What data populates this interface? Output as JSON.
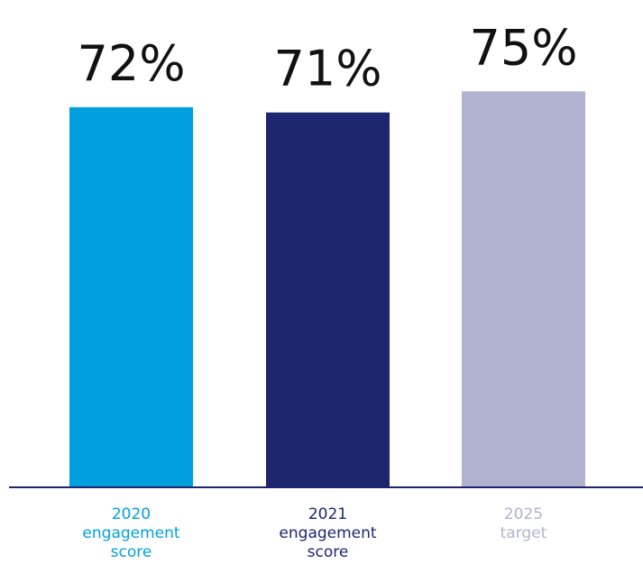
{
  "chart_data": {
    "type": "bar",
    "title": "",
    "xlabel": "",
    "ylabel": "",
    "categories": [
      "2020\nengagement\nscore",
      "2021\nengagement\nscore",
      "2025\ntarget"
    ],
    "values": [
      72,
      71,
      75
    ],
    "value_labels": [
      "72%",
      "71%",
      "75%"
    ],
    "colors": [
      "#00a0df",
      "#1e2670",
      "#b1b3d0"
    ],
    "ylim": [
      0,
      100
    ],
    "grid": false,
    "legend": "none"
  }
}
